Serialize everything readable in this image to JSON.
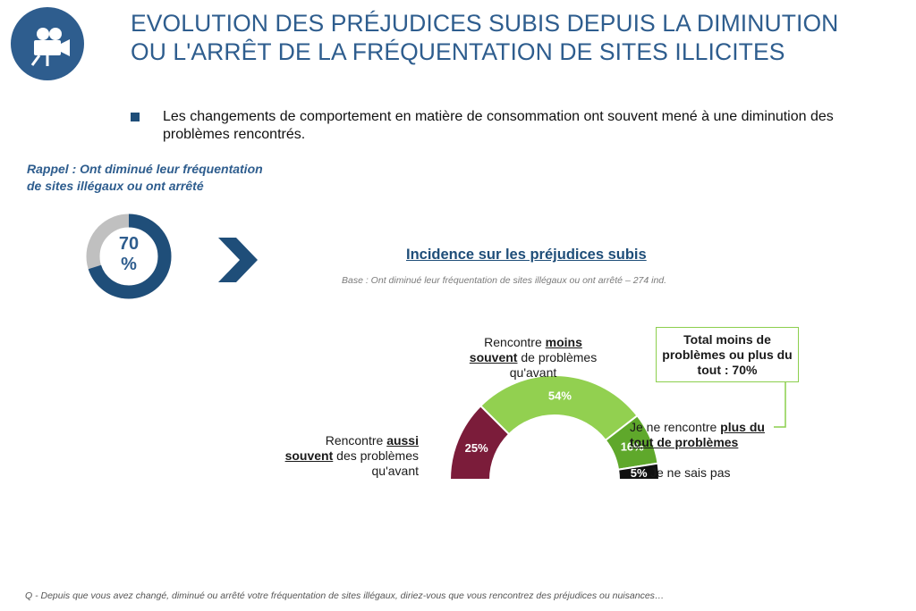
{
  "header": {
    "title_line1": "EVOLUTION DES PRÉJUDICES SUBIS DEPUIS LA DIMINUTION",
    "title_line2": "OU L'ARRÊT DE LA FRÉQUENTATION DE SITES ILLICITES",
    "logo_icon": "camera-icon",
    "colors": {
      "brand": "#2e5d8e"
    }
  },
  "bullet": {
    "text": "Les changements de comportement en matière de consommation ont souvent mené à une diminution des problèmes rencontrés."
  },
  "recall": {
    "line1": "Rappel : Ont diminué leur fréquentation",
    "line2": "de sites illégaux ou ont arrêté",
    "donut_value": 70,
    "donut_line1": "70",
    "donut_line2": "%"
  },
  "chart_data": {
    "type": "pie",
    "subtype": "half-donut",
    "title": "Incidence sur les préjudices subis",
    "subtitle": "Base : Ont diminué leur fréquentation de sites illégaux ou ont arrêté – 274 ind.",
    "series": [
      {
        "key": "aussi",
        "value": 25,
        "label": "25%",
        "color": "#7b1c3a",
        "text_color": "#ffffff"
      },
      {
        "key": "moins",
        "value": 54,
        "label": "54%",
        "color": "#92d050",
        "text_color": "#ffffff"
      },
      {
        "key": "plus",
        "value": 16,
        "label": "16%",
        "color": "#5fa82b",
        "text_color": "#ffffff"
      },
      {
        "key": "nsp",
        "value": 5,
        "label": "5%",
        "color": "#111111",
        "text_color": "#ffffff"
      }
    ],
    "annotations": {
      "moins": {
        "pre": "Rencontre ",
        "bold1": "moins",
        "bold2": "souvent",
        "post": " de problèmes",
        "post2": "qu'avant"
      },
      "aussi": {
        "pre": "Rencontre ",
        "bold1": "aussi",
        "bold2": "souvent",
        "post": " des problèmes",
        "post2": "qu'avant"
      },
      "plus": {
        "pre": "Je ne rencontre ",
        "bold1": "plus du",
        "bold2": "tout de problèmes"
      },
      "nsp": {
        "text": "Je ne sais pas"
      },
      "total": "Total moins de problèmes ou plus du tout : 70%"
    }
  },
  "footnote": "Q - Depuis que vous avez changé, diminué ou arrêté votre fréquentation de sites illégaux, diriez-vous que vous rencontrez des préjudices ou nuisances…"
}
